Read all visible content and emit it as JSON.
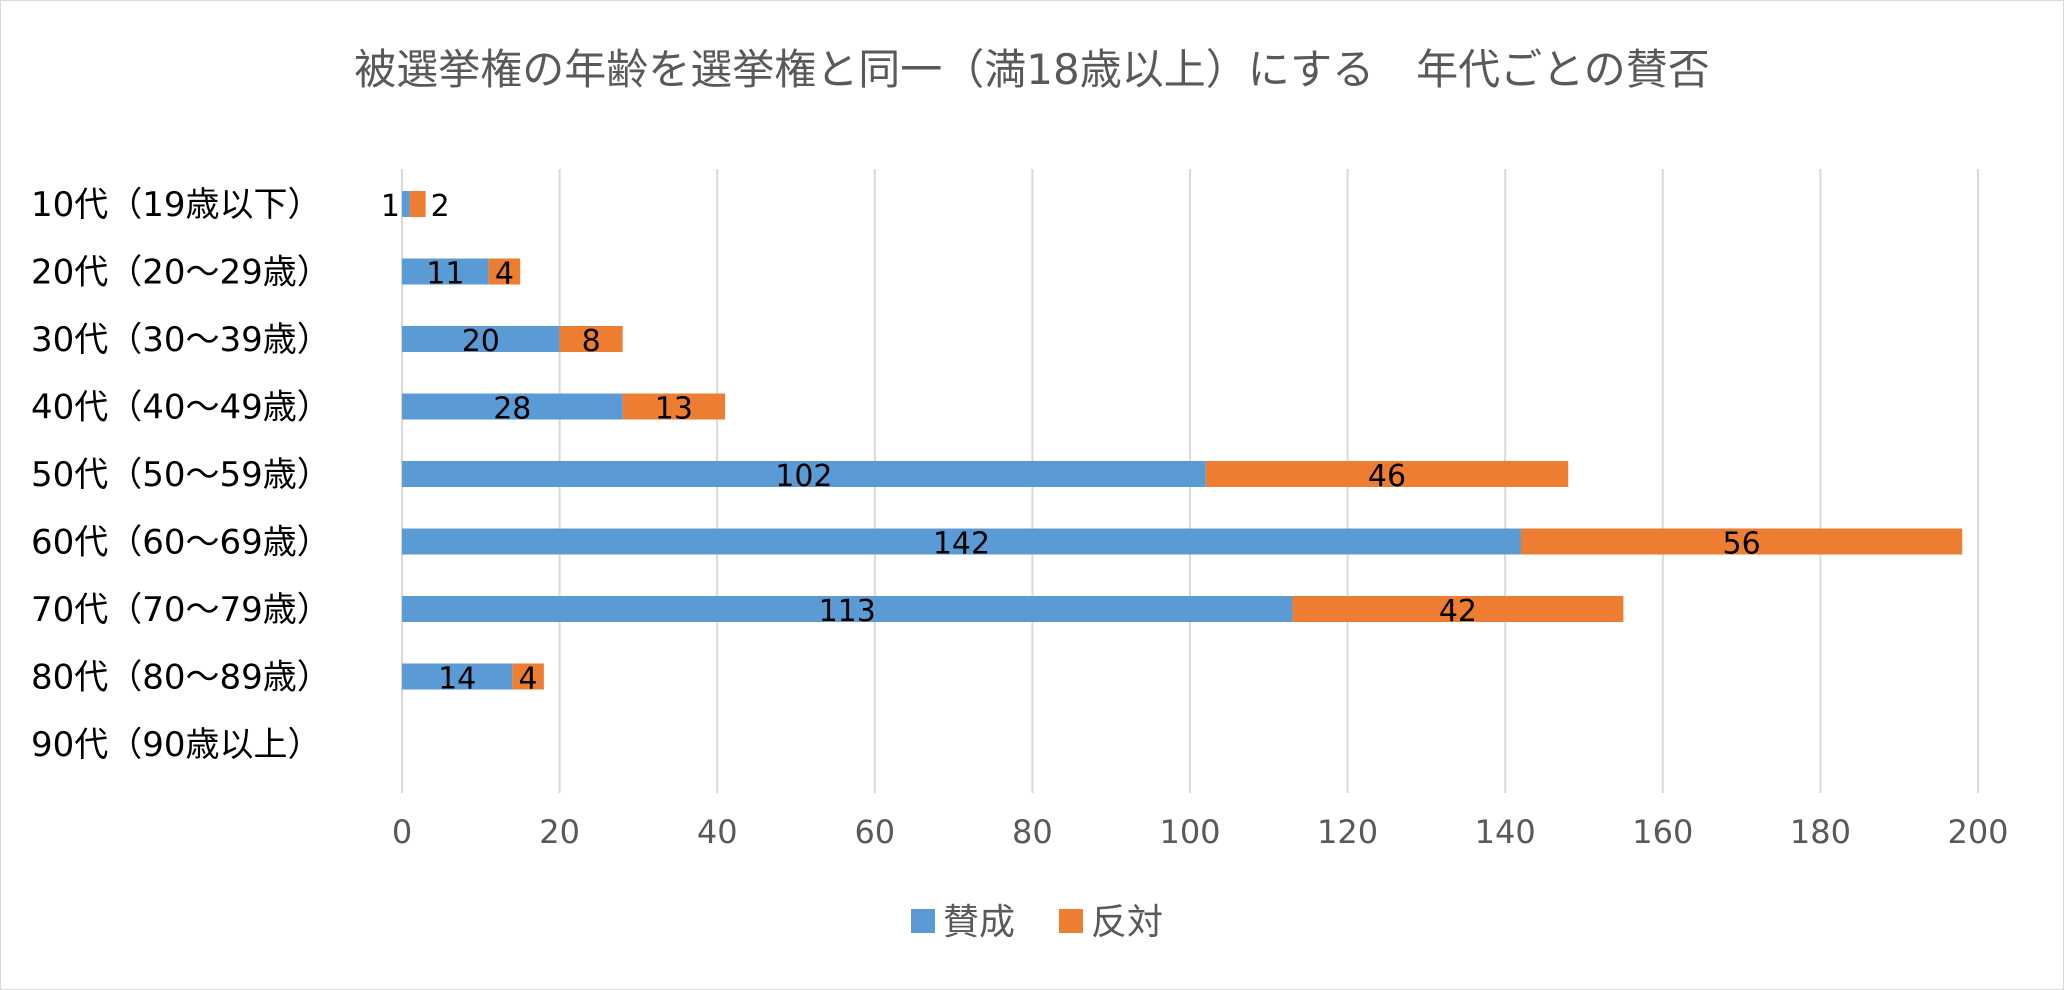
{
  "chart_data": {
    "type": "bar",
    "orientation": "horizontal",
    "stacked": true,
    "title": "被選挙権の年齢を選挙権と同一（満18歳以上）にする　年代ごとの賛否",
    "categories": [
      "10代（19歳以下）",
      "20代（20～29歳）",
      "30代（30～39歳）",
      "40代（40～49歳）",
      "50代（50～59歳）",
      "60代（60～69歳）",
      "70代（70～79歳）",
      "80代（80～89歳）",
      "90代（90歳以上）"
    ],
    "series": [
      {
        "name": "賛成",
        "color": "#5b9bd5",
        "values": [
          1,
          11,
          20,
          28,
          102,
          142,
          113,
          14,
          0
        ]
      },
      {
        "name": "反対",
        "color": "#ed7d31",
        "values": [
          2,
          4,
          8,
          13,
          46,
          56,
          42,
          4,
          0
        ]
      }
    ],
    "xlim": [
      0,
      200
    ],
    "xticks": [
      0,
      20,
      40,
      60,
      80,
      100,
      120,
      140,
      160,
      180,
      200
    ],
    "grid": true,
    "legend_position": "bottom"
  }
}
